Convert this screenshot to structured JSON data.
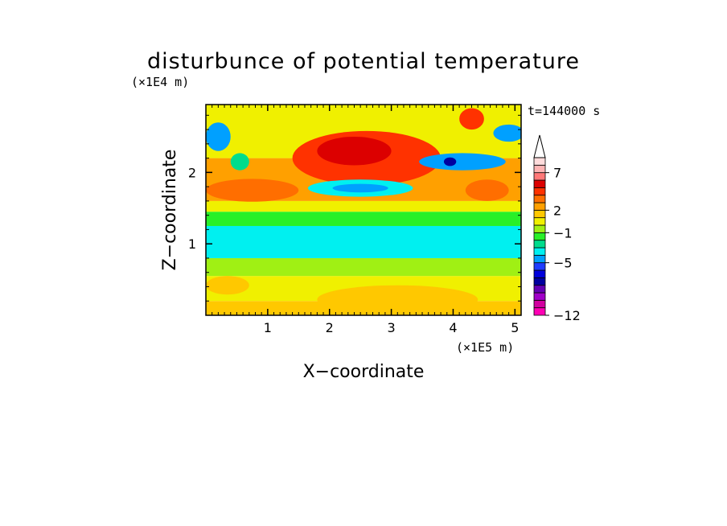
{
  "chart_data": {
    "type": "heatmap",
    "title": "disturbunce of potential temperature",
    "xlabel": "X−coordinate",
    "ylabel": "Z−coordinate",
    "x_unit": "(×1E5 m)",
    "y_unit": "(×1E4 m)",
    "time_label": "t=144000 s",
    "xlim": [
      0,
      5.1
    ],
    "ylim": [
      0,
      2.95
    ],
    "x_ticks": [
      1,
      2,
      3,
      4,
      5
    ],
    "y_ticks": [
      1,
      2
    ],
    "colorbar": {
      "levels": [
        -12,
        -11,
        -10,
        -9,
        -8,
        -7,
        -6,
        -5,
        -4,
        -3,
        -2,
        -1,
        0,
        1,
        2,
        3,
        4,
        5,
        6,
        7,
        8,
        9
      ],
      "labeled": [
        "7",
        "2",
        "−1",
        "−5",
        "−12"
      ],
      "labeled_values": [
        7,
        2,
        -1,
        -5,
        -12
      ],
      "colors": [
        "#ff00b4",
        "#d2009f",
        "#a000c8",
        "#6400b4",
        "#0000a0",
        "#0000dc",
        "#1e3cff",
        "#00a0ff",
        "#00f0f0",
        "#00dc8c",
        "#28f028",
        "#a0f014",
        "#f0f000",
        "#ffc800",
        "#ffa000",
        "#ff6e00",
        "#ff3200",
        "#dc0000",
        "#ff7878",
        "#ffb4b4",
        "#ffdcdc"
      ],
      "extend": "max"
    },
    "bands": [
      {
        "z": [
          0.0,
          0.2
        ],
        "value": 1
      },
      {
        "z": [
          0.2,
          0.55
        ],
        "value": 0.5
      },
      {
        "z": [
          0.55,
          0.8
        ],
        "value": -1
      },
      {
        "z": [
          0.8,
          1.25
        ],
        "value": -4
      },
      {
        "z": [
          1.25,
          1.45
        ],
        "value": -2
      },
      {
        "z": [
          1.45,
          1.6
        ],
        "value": 0
      },
      {
        "z": [
          1.6,
          2.2
        ],
        "value": 2
      },
      {
        "z": [
          2.2,
          2.95
        ],
        "value": 0
      }
    ],
    "features": [
      {
        "cx": 2.6,
        "cz": 2.2,
        "rx": 1.2,
        "rz": 0.38,
        "value": 4
      },
      {
        "cx": 2.4,
        "cz": 2.3,
        "rx": 0.6,
        "rz": 0.2,
        "value": 5
      },
      {
        "cx": 2.5,
        "cz": 1.78,
        "rx": 0.85,
        "rz": 0.12,
        "value": -4
      },
      {
        "cx": 2.5,
        "cz": 1.78,
        "rx": 0.45,
        "rz": 0.06,
        "value": -5
      },
      {
        "cx": 0.75,
        "cz": 1.75,
        "rx": 0.75,
        "rz": 0.16,
        "value": 3
      },
      {
        "cx": 0.2,
        "cz": 2.5,
        "rx": 0.2,
        "rz": 0.2,
        "value": -5
      },
      {
        "cx": 0.55,
        "cz": 2.15,
        "rx": 0.15,
        "rz": 0.12,
        "value": -3
      },
      {
        "cx": 4.55,
        "cz": 1.75,
        "rx": 0.35,
        "rz": 0.15,
        "value": 3
      },
      {
        "cx": 4.15,
        "cz": 2.15,
        "rx": 0.7,
        "rz": 0.12,
        "value": -5
      },
      {
        "cx": 3.95,
        "cz": 2.15,
        "rx": 0.1,
        "rz": 0.06,
        "value": -8
      },
      {
        "cx": 4.9,
        "cz": 2.55,
        "rx": 0.25,
        "rz": 0.12,
        "value": -5
      },
      {
        "cx": 4.3,
        "cz": 2.75,
        "rx": 0.2,
        "rz": 0.15,
        "value": 4
      },
      {
        "cx": 3.1,
        "cz": 0.22,
        "rx": 1.3,
        "rz": 0.2,
        "value": 1
      },
      {
        "cx": 0.35,
        "cz": 0.42,
        "rx": 0.35,
        "rz": 0.13,
        "value": 1
      }
    ]
  }
}
